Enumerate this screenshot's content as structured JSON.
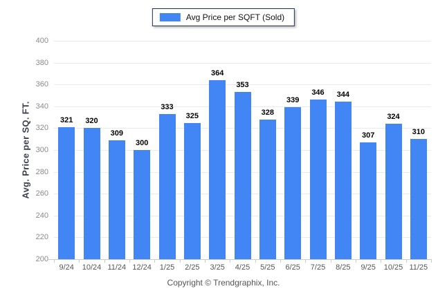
{
  "legend": {
    "label": "Avg Price per SQFT (Sold)"
  },
  "footer": {
    "copyright": "Copyright © Trendgraphix, Inc."
  },
  "colors": {
    "bar": "#4285f4",
    "legend_border": "#1f2d54",
    "gridline": "#e9e9ef",
    "axis": "#c9c9d1",
    "y_tick_label": "#8a8a8a",
    "x_tick_label": "#555555",
    "value_label": "#000000"
  },
  "chart_data": {
    "type": "bar",
    "title": "",
    "categories": [
      "9/24",
      "10/24",
      "11/24",
      "12/24",
      "1/25",
      "2/25",
      "3/25",
      "4/25",
      "5/25",
      "6/25",
      "7/25",
      "8/25",
      "9/25",
      "10/25",
      "11/25"
    ],
    "values": [
      321,
      320,
      309,
      300,
      333,
      325,
      364,
      353,
      328,
      339,
      346,
      344,
      307,
      324,
      310
    ],
    "xlabel": "",
    "ylabel": "Avg. Price per SQ. FT.",
    "ylim": [
      200,
      400
    ],
    "ytick_step": 20,
    "grid": true,
    "legend_position": "top-center",
    "legend_entries": [
      "Avg Price per SQFT (Sold)"
    ],
    "data_labels": true
  }
}
